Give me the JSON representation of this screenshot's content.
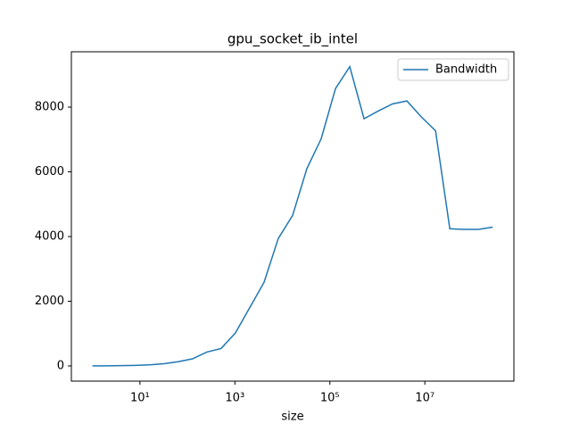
{
  "chart_data": {
    "type": "line",
    "title": "gpu_socket_ib_intel",
    "x_label": "size",
    "x": [
      1,
      2,
      4,
      8,
      16,
      32,
      64,
      128,
      256,
      512,
      1024,
      2048,
      4096,
      8192,
      16384,
      32768,
      65536,
      131072,
      262144,
      524288,
      1048576,
      2097152,
      4194304,
      8388608,
      16777216,
      33554432,
      67108864,
      134217728,
      268435456
    ],
    "series": [
      {
        "name": "Bandwidth",
        "color": "#1f77b4",
        "values": [
          2,
          5,
          9,
          18,
          35,
          70,
          130,
          220,
          430,
          540,
          1020,
          1800,
          2580,
          3940,
          4650,
          6100,
          7020,
          8570,
          9250,
          7640,
          7880,
          8100,
          8190,
          7700,
          7270,
          4240,
          4220,
          4220,
          4290
        ]
      }
    ],
    "xscale": "log",
    "xlim": [
      0.36,
      750000000
    ],
    "xticks": [
      {
        "value": 10,
        "label": "10¹"
      },
      {
        "value": 1000,
        "label": "10³"
      },
      {
        "value": 100000,
        "label": "10⁵"
      },
      {
        "value": 10000000,
        "label": "10⁷"
      }
    ],
    "ylim": [
      -469,
      9710
    ],
    "yticks": [
      0,
      2000,
      4000,
      6000,
      8000
    ],
    "grid": false,
    "legend": "upper right"
  }
}
